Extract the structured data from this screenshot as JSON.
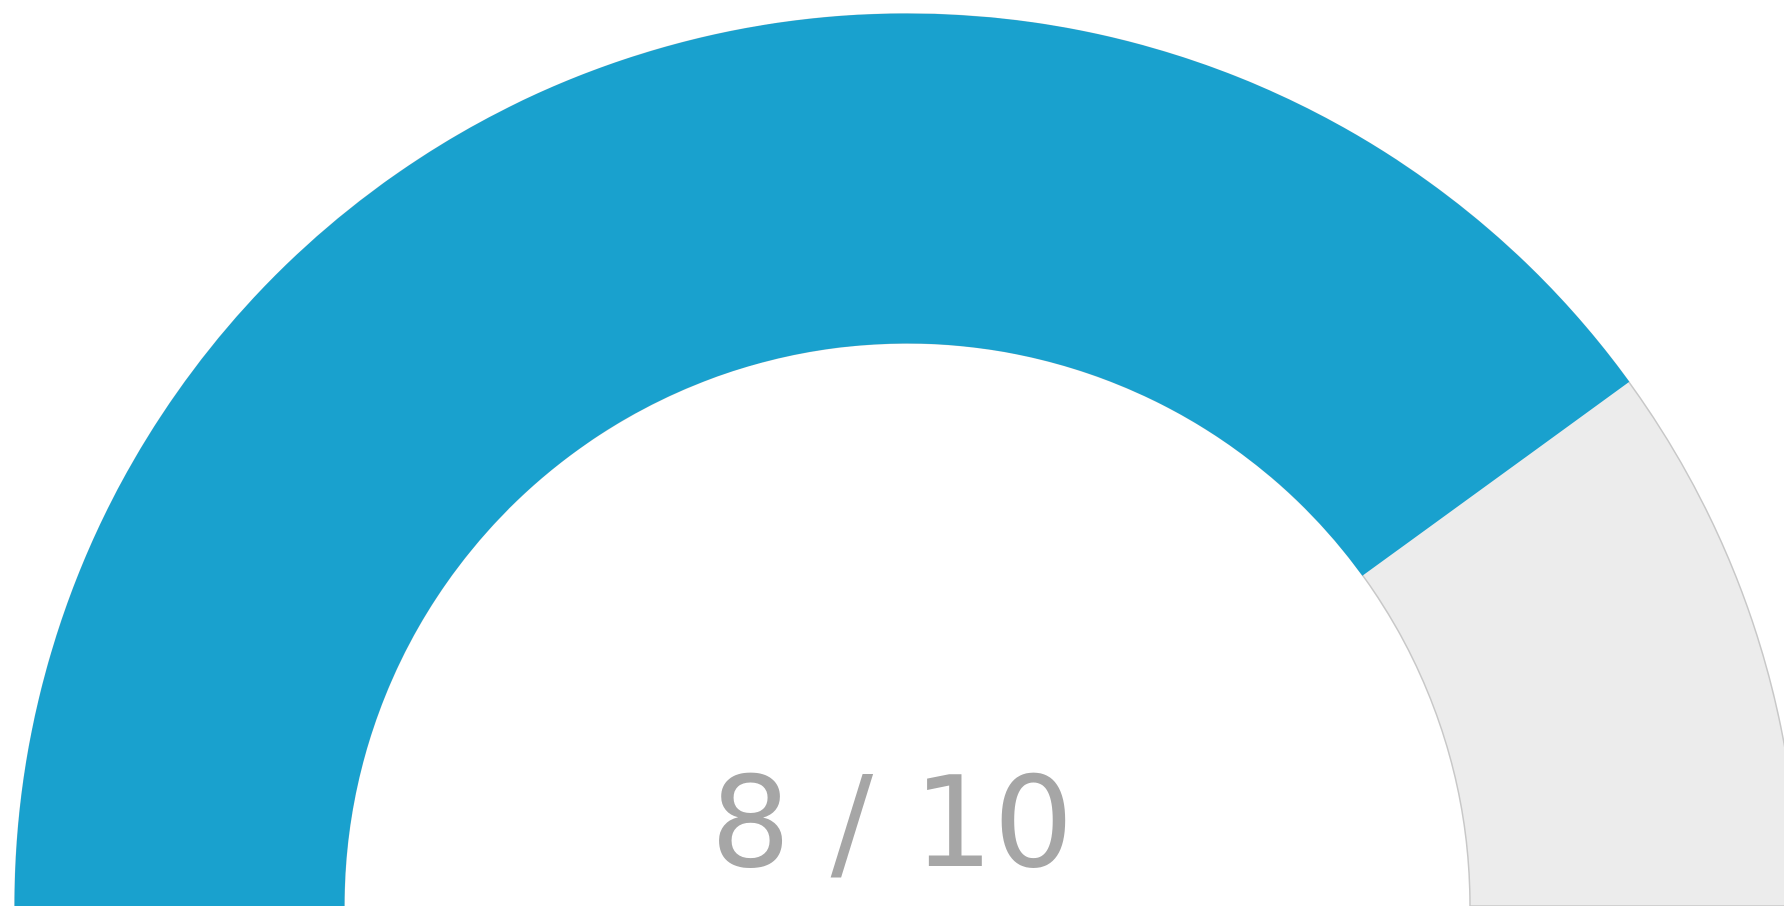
{
  "chart_data": {
    "type": "gauge",
    "value": 8,
    "max": 10,
    "label": "8 / 10",
    "colors": {
      "filled": "#19a1ce",
      "remaining": "#ececec",
      "remaining_stroke": "#c8c8c8",
      "label": "#a6a6a6"
    }
  }
}
